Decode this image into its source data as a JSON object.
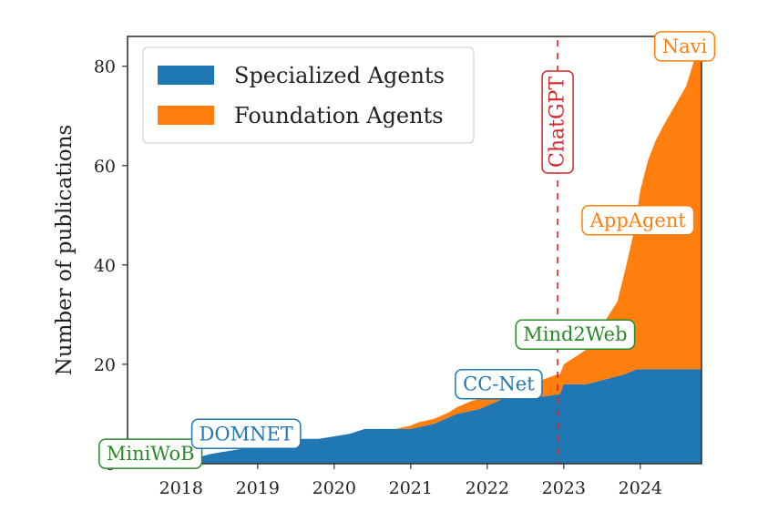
{
  "chart_data": {
    "type": "area",
    "stacked": true,
    "title": "",
    "xlabel": "",
    "ylabel": "Number of publications",
    "xlim": [
      2017.3,
      2024.8
    ],
    "ylim": [
      0,
      86
    ],
    "x_ticks": [
      {
        "value": 2018,
        "label": "2018"
      },
      {
        "value": 2019,
        "label": "2019"
      },
      {
        "value": 2020,
        "label": "2020"
      },
      {
        "value": 2021,
        "label": "2021"
      },
      {
        "value": 2022,
        "label": "2022"
      },
      {
        "value": 2023,
        "label": "2023"
      },
      {
        "value": 2024,
        "label": "2024"
      }
    ],
    "y_ticks": [
      {
        "value": 0,
        "label": "0"
      },
      {
        "value": 20,
        "label": "20"
      },
      {
        "value": 40,
        "label": "40"
      },
      {
        "value": 60,
        "label": "60"
      },
      {
        "value": 80,
        "label": "80"
      }
    ],
    "grid": false,
    "legend": {
      "position": "top-left"
    },
    "series": [
      {
        "name": "Specialized Agents",
        "color": "#1f77b4",
        "points": [
          [
            2017.3,
            0
          ],
          [
            2017.85,
            1
          ],
          [
            2018.15,
            1
          ],
          [
            2018.4,
            2
          ],
          [
            2018.8,
            3
          ],
          [
            2019.0,
            4
          ],
          [
            2019.4,
            5
          ],
          [
            2019.8,
            5
          ],
          [
            2020.2,
            6
          ],
          [
            2020.4,
            7
          ],
          [
            2021.0,
            7
          ],
          [
            2021.3,
            8
          ],
          [
            2021.6,
            10
          ],
          [
            2021.9,
            11
          ],
          [
            2022.2,
            13
          ],
          [
            2022.5,
            13
          ],
          [
            2022.95,
            14
          ],
          [
            2023.0,
            16
          ],
          [
            2023.3,
            16
          ],
          [
            2023.55,
            17
          ],
          [
            2023.8,
            18
          ],
          [
            2023.95,
            19
          ],
          [
            2024.4,
            19
          ],
          [
            2024.8,
            19
          ]
        ]
      },
      {
        "name": "Foundation Agents",
        "color": "#ff7f0e",
        "points": [
          [
            2017.3,
            0
          ],
          [
            2020.8,
            0
          ],
          [
            2021.1,
            1
          ],
          [
            2021.5,
            1
          ],
          [
            2021.8,
            2
          ],
          [
            2022.2,
            2
          ],
          [
            2022.6,
            3
          ],
          [
            2022.9,
            4
          ],
          [
            2023.0,
            4
          ],
          [
            2023.2,
            6
          ],
          [
            2023.4,
            8
          ],
          [
            2023.55,
            12
          ],
          [
            2023.7,
            15
          ],
          [
            2023.82,
            22
          ],
          [
            2023.92,
            28
          ],
          [
            2024.0,
            36
          ],
          [
            2024.1,
            42
          ],
          [
            2024.2,
            46
          ],
          [
            2024.3,
            49
          ],
          [
            2024.45,
            53
          ],
          [
            2024.6,
            57
          ],
          [
            2024.7,
            62
          ],
          [
            2024.8,
            63
          ]
        ]
      }
    ],
    "reference_lines": [
      {
        "x": 2022.92,
        "label": "ChatGPT",
        "color": "#d62728",
        "style": "dashed"
      }
    ],
    "annotations": [
      {
        "text": "MiniWoB",
        "x": 2017.6,
        "y": 2,
        "color": "#2a8a2a"
      },
      {
        "text": "DOMNET",
        "x": 2018.85,
        "y": 6,
        "color": "#1f77b4"
      },
      {
        "text": "CC-Net",
        "x": 2022.15,
        "y": 16,
        "color": "#1f77b4"
      },
      {
        "text": "Mind2Web",
        "x": 2023.15,
        "y": 26,
        "color": "#2a8a2a"
      },
      {
        "text": "AppAgent",
        "x": 2023.97,
        "y": 49,
        "color": "#ff7f0e"
      },
      {
        "text": "Navi",
        "x": 2024.58,
        "y": 84,
        "color": "#ff7f0e"
      }
    ]
  }
}
